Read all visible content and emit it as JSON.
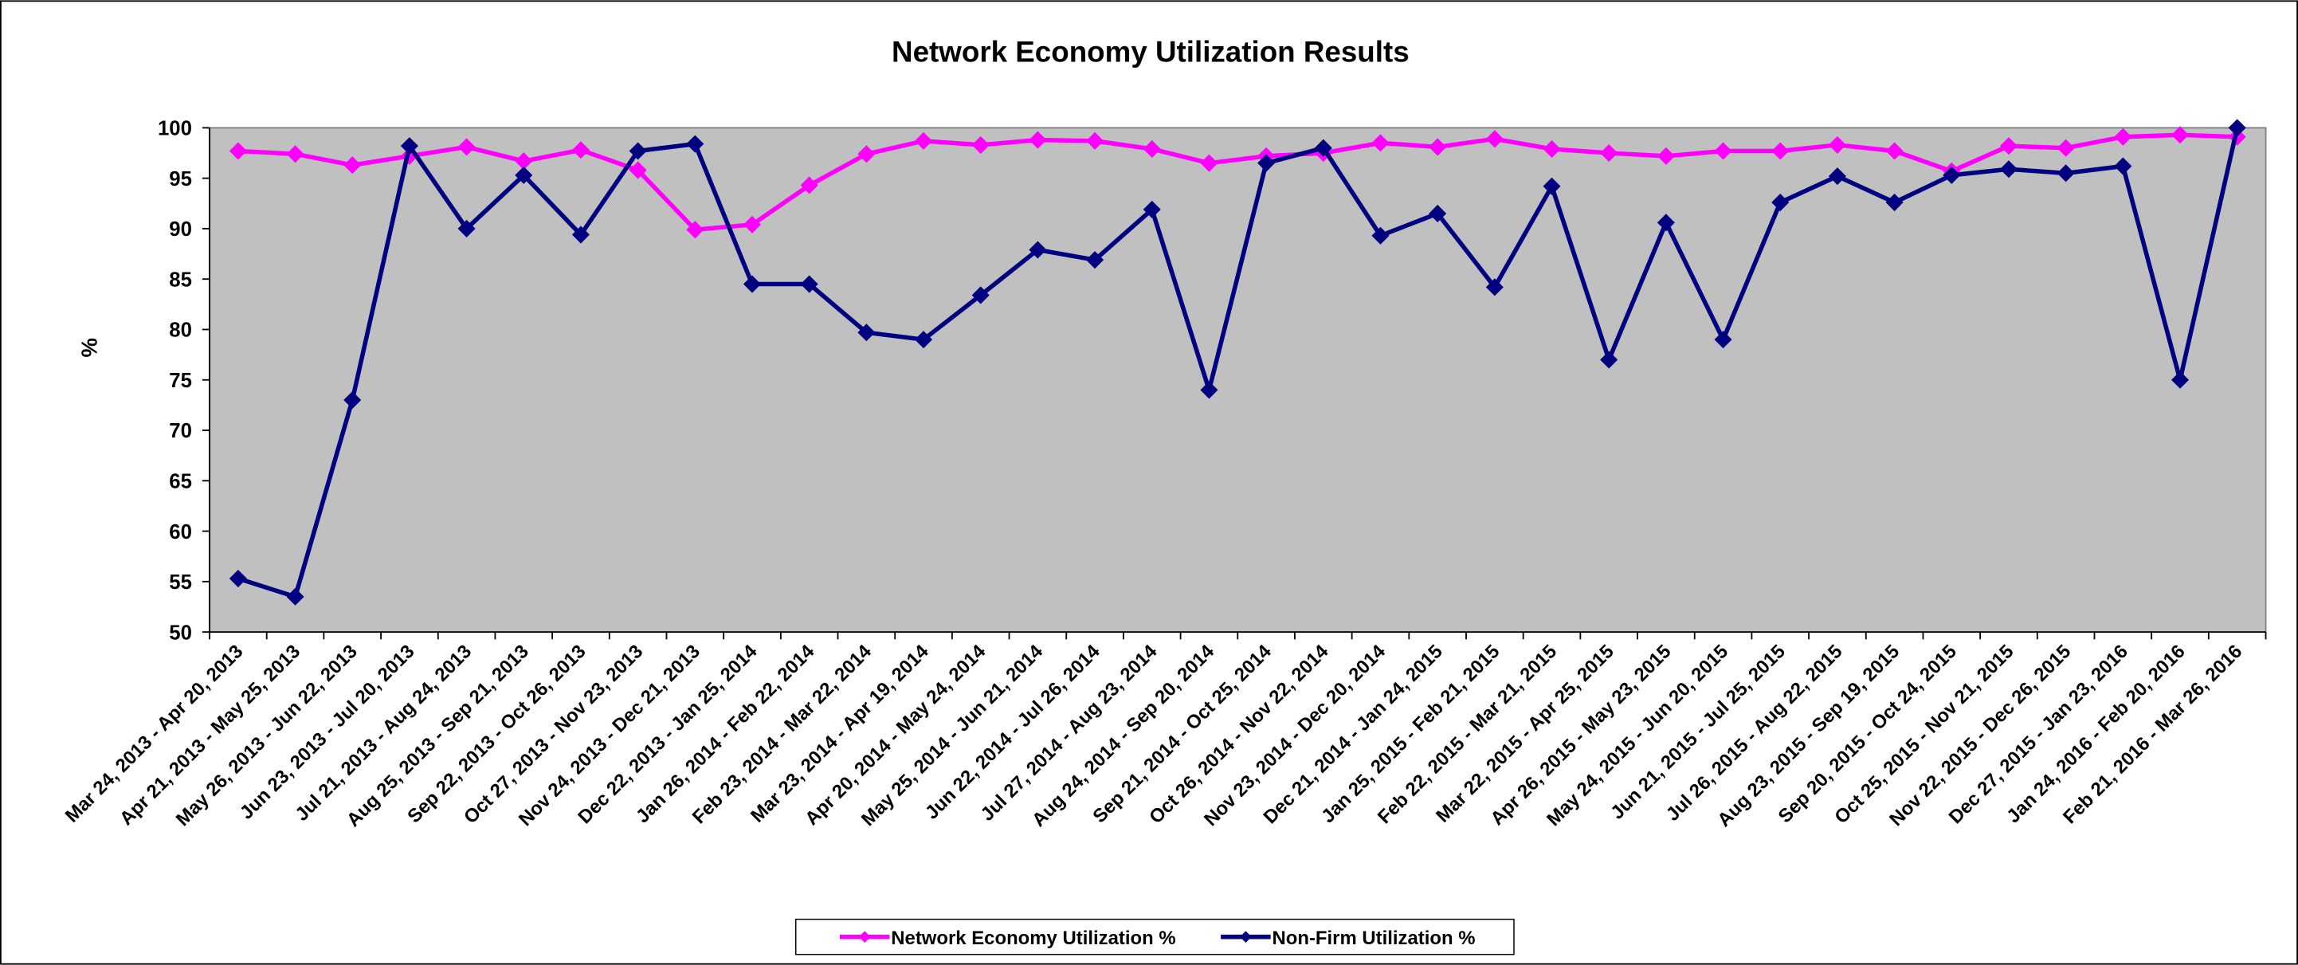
{
  "chart_data": {
    "type": "line",
    "title": "Network Economy Utilization Results",
    "y_label": "%",
    "categories": [
      "Mar 24, 2013 - Apr 20, 2013",
      "Apr 21, 2013 - May 25, 2013",
      "May 26, 2013 - Jun 22, 2013",
      "Jun 23, 2013 - Jul 20, 2013",
      "Jul 21, 2013 - Aug 24, 2013",
      "Aug 25, 2013 - Sep 21, 2013",
      "Sep 22, 2013 - Oct 26, 2013",
      "Oct 27, 2013 - Nov 23, 2013",
      "Nov 24, 2013 - Dec 21, 2013",
      "Dec 22, 2013 - Jan 25, 2014",
      "Jan 26, 2014 - Feb 22, 2014",
      "Feb 23, 2014 - Mar 22, 2014",
      "Mar 23, 2014 - Apr 19, 2014",
      "Apr 20, 2014 - May 24, 2014",
      "May 25, 2014 - Jun 21, 2014",
      "Jun 22, 2014 - Jul 26, 2014",
      "Jul 27, 2014 - Aug 23, 2014",
      "Aug 24, 2014 - Sep 20, 2014",
      "Sep 21, 2014 - Oct 25, 2014",
      "Oct 26, 2014 - Nov 22, 2014",
      "Nov 23, 2014 - Dec 20, 2014",
      "Dec 21, 2014 - Jan 24, 2015",
      "Jan 25, 2015 - Feb 21, 2015",
      "Feb 22, 2015 - Mar 21, 2015",
      "Mar 22, 2015 - Apr 25, 2015",
      "Apr 26, 2015 - May 23, 2015",
      "May 24, 2015 - Jun 20, 2015",
      "Jun 21, 2015 - Jul 25, 2015",
      "Jul 26, 2015 - Aug 22, 2015",
      "Aug 23, 2015 - Sep 19, 2015",
      "Sep 20, 2015 - Oct 24, 2015",
      "Oct 25, 2015 - Nov 21, 2015",
      "Nov 22, 2015 - Dec 26, 2015",
      "Dec 27, 2015 - Jan 23, 2016",
      "Jan 24, 2016 - Feb 20, 2016",
      "Feb 21, 2016 - Mar 26, 2016"
    ],
    "series": [
      {
        "name": "Network Economy Utilization %",
        "color": "#ff00ff",
        "values": [
          97.7,
          97.4,
          96.3,
          97.2,
          98.1,
          96.7,
          97.8,
          95.8,
          89.9,
          90.4,
          94.3,
          97.4,
          98.7,
          98.3,
          98.8,
          98.7,
          97.9,
          96.5,
          97.2,
          97.5,
          98.5,
          98.1,
          98.9,
          97.9,
          97.5,
          97.2,
          97.7,
          97.7,
          98.3,
          97.7,
          95.7,
          98.2,
          98.0,
          99.1,
          99.3,
          99.1
        ]
      },
      {
        "name": "Non-Firm Utilization %",
        "color": "#000080",
        "values": [
          55.3,
          53.5,
          73.0,
          98.2,
          90.0,
          95.3,
          89.4,
          97.7,
          98.4,
          84.5,
          84.5,
          79.7,
          79.0,
          83.4,
          87.9,
          86.9,
          91.9,
          74.0,
          96.5,
          98.0,
          89.3,
          91.5,
          84.2,
          94.2,
          77.0,
          90.6,
          79.0,
          92.6,
          95.2,
          92.6,
          95.3,
          95.9,
          95.5,
          96.2,
          75.0,
          100.0
        ]
      }
    ],
    "ylim": [
      50,
      100
    ],
    "yticks": [
      50,
      55,
      60,
      65,
      70,
      75,
      80,
      85,
      90,
      95,
      100
    ],
    "plot_background": "#c0c0c0",
    "legend": "bottom"
  }
}
